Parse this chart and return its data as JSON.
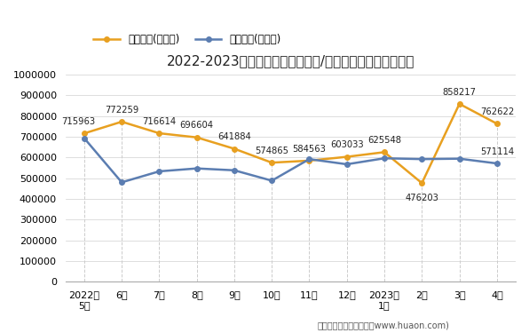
{
  "title": "2022-2023年河北省（境内目的地/货源地）进、出口额统计",
  "x_labels": [
    "2022年\n5月",
    "6月",
    "7月",
    "8月",
    "9月",
    "10月",
    "11月",
    "12月",
    "2023年\n1月",
    "2月",
    "3月",
    "4月"
  ],
  "export_values": [
    715963,
    772259,
    716614,
    696604,
    641884,
    574865,
    584563,
    603033,
    625548,
    476203,
    858217,
    762622
  ],
  "import_values": [
    693000,
    480000,
    533000,
    547000,
    538000,
    488000,
    592000,
    567000,
    596000,
    592000,
    594000,
    571114
  ],
  "export_label": "出口总额(万美元)",
  "import_label": "进口总额(万美元)",
  "export_color": "#E8A020",
  "import_color": "#5B7DB1",
  "ylim": [
    0,
    1000000
  ],
  "yticks": [
    0,
    100000,
    200000,
    300000,
    400000,
    500000,
    600000,
    700000,
    800000,
    900000,
    1000000
  ],
  "footer": "制图：华经产业研究院（www.huaon.com)",
  "bg_color": "#ffffff",
  "grid_color": "#d0d0d0",
  "annotation_fontsize": 7.2,
  "line_width": 1.8,
  "marker_size": 4
}
